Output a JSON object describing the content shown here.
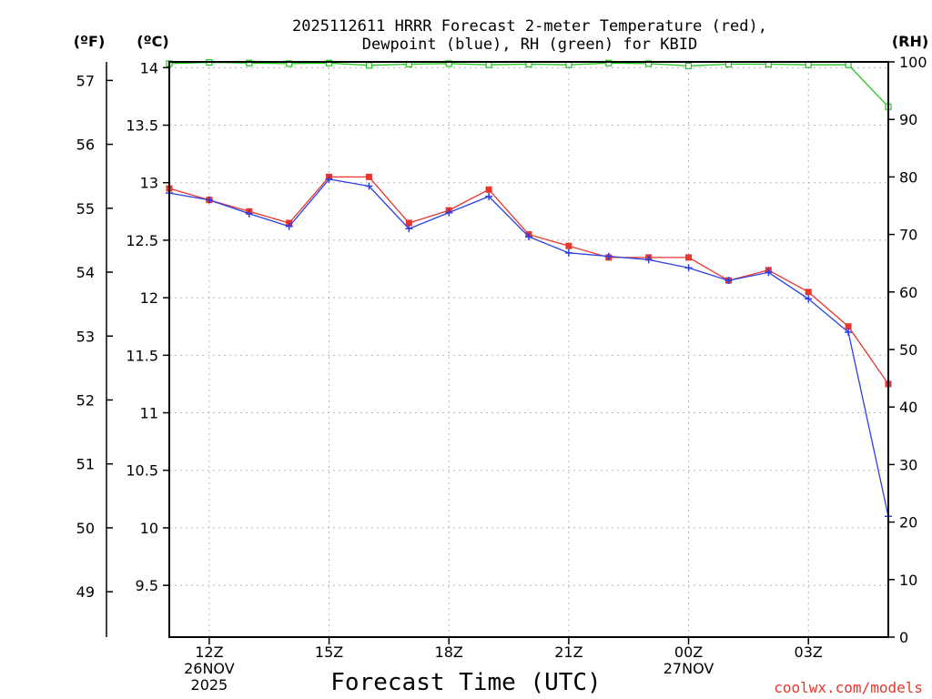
{
  "chart_data": {
    "type": "line",
    "title_line1": "2025112611 HRRR Forecast 2-meter Temperature (red),",
    "title_line2": "Dewpoint (blue), RH (green) for KBID",
    "xlabel": "Forecast Time (UTC)",
    "credit": "coolwx.com/models",
    "units": {
      "fahrenheit": "(ºF)",
      "celsius": "(ºC)",
      "rh": "(RH)"
    },
    "x_hours": [
      11,
      12,
      13,
      14,
      15,
      16,
      17,
      18,
      19,
      20,
      21,
      22,
      23,
      24,
      25,
      26,
      27,
      28,
      29
    ],
    "xlim": [
      11,
      29
    ],
    "x_ticks": [
      {
        "hour": 12,
        "lines": [
          "12Z",
          "26NOV",
          "2025"
        ]
      },
      {
        "hour": 15,
        "lines": [
          "15Z"
        ]
      },
      {
        "hour": 18,
        "lines": [
          "18Z"
        ]
      },
      {
        "hour": 21,
        "lines": [
          "21Z"
        ]
      },
      {
        "hour": 24,
        "lines": [
          "00Z",
          "27NOV"
        ]
      },
      {
        "hour": 27,
        "lines": [
          "03Z"
        ]
      }
    ],
    "ylim_celsius": [
      9.05,
      14.05
    ],
    "ylim_rh": [
      0,
      100
    ],
    "celsius_ticks": [
      "9.5",
      "10",
      "10.5",
      "11",
      "11.5",
      "12",
      "12.5",
      "13",
      "13.5",
      "14"
    ],
    "fahrenheit_ticks": [
      "49",
      "50",
      "51",
      "52",
      "53",
      "54",
      "55",
      "56",
      "57"
    ],
    "rh_ticks": [
      "0",
      "10",
      "20",
      "30",
      "40",
      "50",
      "60",
      "70",
      "80",
      "90",
      "100"
    ],
    "series": [
      {
        "name": "Temperature",
        "color": "#e8352e",
        "marker": "square",
        "axis": "celsius",
        "values": [
          12.95,
          12.85,
          12.75,
          12.65,
          13.05,
          13.05,
          12.65,
          12.76,
          12.94,
          12.55,
          12.45,
          12.35,
          12.35,
          12.35,
          12.15,
          12.24,
          12.05,
          11.75,
          11.25
        ]
      },
      {
        "name": "Dewpoint",
        "color": "#2a3fe6",
        "marker": "plus",
        "axis": "celsius",
        "values": [
          12.91,
          12.85,
          12.73,
          12.62,
          13.03,
          12.97,
          12.6,
          12.74,
          12.88,
          12.53,
          12.39,
          12.36,
          12.33,
          12.26,
          12.15,
          12.22,
          11.99,
          11.7,
          10.1
        ]
      },
      {
        "name": "RH",
        "color": "#22c422",
        "marker": "open-square",
        "axis": "rh",
        "values": [
          99.7,
          99.9,
          99.8,
          99.7,
          99.8,
          99.4,
          99.6,
          99.7,
          99.5,
          99.6,
          99.5,
          99.8,
          99.7,
          99.3,
          99.6,
          99.6,
          99.5,
          99.5,
          92.2
        ]
      }
    ]
  }
}
